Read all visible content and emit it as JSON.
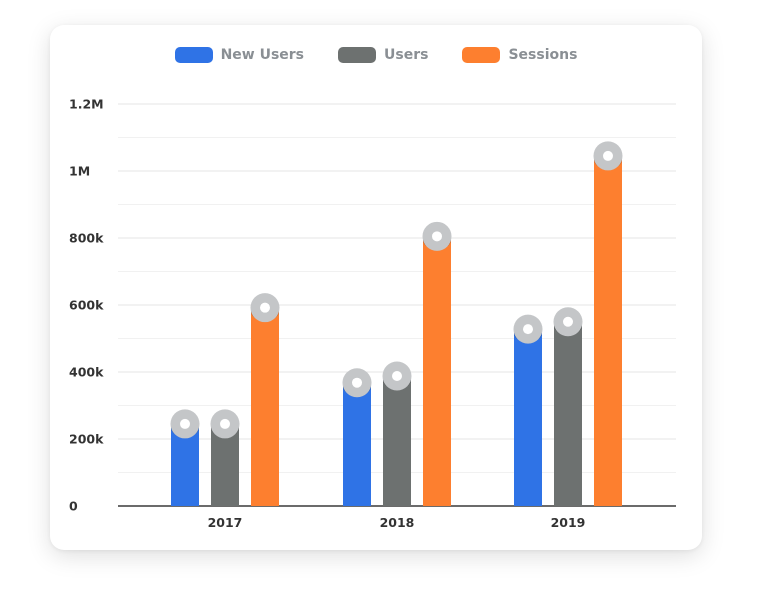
{
  "chart_data": {
    "type": "bar",
    "categories": [
      "2017",
      "2018",
      "2019"
    ],
    "series": [
      {
        "name": "New Users",
        "color": "#2f73e6",
        "values": [
          245000,
          368000,
          528000
        ]
      },
      {
        "name": "Users",
        "color": "#6d7170",
        "values": [
          245000,
          388000,
          550000
        ]
      },
      {
        "name": "Sessions",
        "color": "#fd7f2f",
        "values": [
          592000,
          805000,
          1045000
        ]
      }
    ],
    "ylim": [
      0,
      1200000
    ],
    "y_ticks": [
      {
        "value": 0,
        "label": "0"
      },
      {
        "value": 200000,
        "label": "200k"
      },
      {
        "value": 400000,
        "label": "400k"
      },
      {
        "value": 600000,
        "label": "600k"
      },
      {
        "value": 800000,
        "label": "800k"
      },
      {
        "value": 1000000,
        "label": "1M"
      },
      {
        "value": 1200000,
        "label": "1.2M"
      }
    ],
    "grid": true,
    "legend_position": "top-center",
    "marker": "ring-circle",
    "marker_color": "#c4c6c8"
  }
}
